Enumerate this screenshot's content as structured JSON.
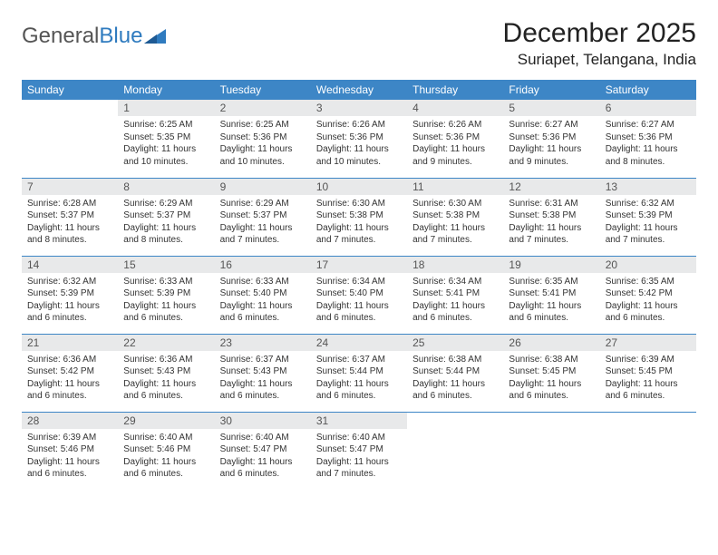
{
  "logo": {
    "word1": "General",
    "word2": "Blue"
  },
  "title": "December 2025",
  "location": "Suriapet, Telangana, India",
  "colors": {
    "header_bg": "#3d86c6",
    "header_fg": "#ffffff",
    "daynum_bg": "#e8e9ea",
    "border": "#3d86c6",
    "text": "#333333"
  },
  "weekdays": [
    "Sunday",
    "Monday",
    "Tuesday",
    "Wednesday",
    "Thursday",
    "Friday",
    "Saturday"
  ],
  "weeks": [
    [
      {
        "n": "",
        "sunrise": "",
        "sunset": "",
        "daylight": ""
      },
      {
        "n": "1",
        "sunrise": "Sunrise: 6:25 AM",
        "sunset": "Sunset: 5:35 PM",
        "daylight": "Daylight: 11 hours and 10 minutes."
      },
      {
        "n": "2",
        "sunrise": "Sunrise: 6:25 AM",
        "sunset": "Sunset: 5:36 PM",
        "daylight": "Daylight: 11 hours and 10 minutes."
      },
      {
        "n": "3",
        "sunrise": "Sunrise: 6:26 AM",
        "sunset": "Sunset: 5:36 PM",
        "daylight": "Daylight: 11 hours and 10 minutes."
      },
      {
        "n": "4",
        "sunrise": "Sunrise: 6:26 AM",
        "sunset": "Sunset: 5:36 PM",
        "daylight": "Daylight: 11 hours and 9 minutes."
      },
      {
        "n": "5",
        "sunrise": "Sunrise: 6:27 AM",
        "sunset": "Sunset: 5:36 PM",
        "daylight": "Daylight: 11 hours and 9 minutes."
      },
      {
        "n": "6",
        "sunrise": "Sunrise: 6:27 AM",
        "sunset": "Sunset: 5:36 PM",
        "daylight": "Daylight: 11 hours and 8 minutes."
      }
    ],
    [
      {
        "n": "7",
        "sunrise": "Sunrise: 6:28 AM",
        "sunset": "Sunset: 5:37 PM",
        "daylight": "Daylight: 11 hours and 8 minutes."
      },
      {
        "n": "8",
        "sunrise": "Sunrise: 6:29 AM",
        "sunset": "Sunset: 5:37 PM",
        "daylight": "Daylight: 11 hours and 8 minutes."
      },
      {
        "n": "9",
        "sunrise": "Sunrise: 6:29 AM",
        "sunset": "Sunset: 5:37 PM",
        "daylight": "Daylight: 11 hours and 7 minutes."
      },
      {
        "n": "10",
        "sunrise": "Sunrise: 6:30 AM",
        "sunset": "Sunset: 5:38 PM",
        "daylight": "Daylight: 11 hours and 7 minutes."
      },
      {
        "n": "11",
        "sunrise": "Sunrise: 6:30 AM",
        "sunset": "Sunset: 5:38 PM",
        "daylight": "Daylight: 11 hours and 7 minutes."
      },
      {
        "n": "12",
        "sunrise": "Sunrise: 6:31 AM",
        "sunset": "Sunset: 5:38 PM",
        "daylight": "Daylight: 11 hours and 7 minutes."
      },
      {
        "n": "13",
        "sunrise": "Sunrise: 6:32 AM",
        "sunset": "Sunset: 5:39 PM",
        "daylight": "Daylight: 11 hours and 7 minutes."
      }
    ],
    [
      {
        "n": "14",
        "sunrise": "Sunrise: 6:32 AM",
        "sunset": "Sunset: 5:39 PM",
        "daylight": "Daylight: 11 hours and 6 minutes."
      },
      {
        "n": "15",
        "sunrise": "Sunrise: 6:33 AM",
        "sunset": "Sunset: 5:39 PM",
        "daylight": "Daylight: 11 hours and 6 minutes."
      },
      {
        "n": "16",
        "sunrise": "Sunrise: 6:33 AM",
        "sunset": "Sunset: 5:40 PM",
        "daylight": "Daylight: 11 hours and 6 minutes."
      },
      {
        "n": "17",
        "sunrise": "Sunrise: 6:34 AM",
        "sunset": "Sunset: 5:40 PM",
        "daylight": "Daylight: 11 hours and 6 minutes."
      },
      {
        "n": "18",
        "sunrise": "Sunrise: 6:34 AM",
        "sunset": "Sunset: 5:41 PM",
        "daylight": "Daylight: 11 hours and 6 minutes."
      },
      {
        "n": "19",
        "sunrise": "Sunrise: 6:35 AM",
        "sunset": "Sunset: 5:41 PM",
        "daylight": "Daylight: 11 hours and 6 minutes."
      },
      {
        "n": "20",
        "sunrise": "Sunrise: 6:35 AM",
        "sunset": "Sunset: 5:42 PM",
        "daylight": "Daylight: 11 hours and 6 minutes."
      }
    ],
    [
      {
        "n": "21",
        "sunrise": "Sunrise: 6:36 AM",
        "sunset": "Sunset: 5:42 PM",
        "daylight": "Daylight: 11 hours and 6 minutes."
      },
      {
        "n": "22",
        "sunrise": "Sunrise: 6:36 AM",
        "sunset": "Sunset: 5:43 PM",
        "daylight": "Daylight: 11 hours and 6 minutes."
      },
      {
        "n": "23",
        "sunrise": "Sunrise: 6:37 AM",
        "sunset": "Sunset: 5:43 PM",
        "daylight": "Daylight: 11 hours and 6 minutes."
      },
      {
        "n": "24",
        "sunrise": "Sunrise: 6:37 AM",
        "sunset": "Sunset: 5:44 PM",
        "daylight": "Daylight: 11 hours and 6 minutes."
      },
      {
        "n": "25",
        "sunrise": "Sunrise: 6:38 AM",
        "sunset": "Sunset: 5:44 PM",
        "daylight": "Daylight: 11 hours and 6 minutes."
      },
      {
        "n": "26",
        "sunrise": "Sunrise: 6:38 AM",
        "sunset": "Sunset: 5:45 PM",
        "daylight": "Daylight: 11 hours and 6 minutes."
      },
      {
        "n": "27",
        "sunrise": "Sunrise: 6:39 AM",
        "sunset": "Sunset: 5:45 PM",
        "daylight": "Daylight: 11 hours and 6 minutes."
      }
    ],
    [
      {
        "n": "28",
        "sunrise": "Sunrise: 6:39 AM",
        "sunset": "Sunset: 5:46 PM",
        "daylight": "Daylight: 11 hours and 6 minutes."
      },
      {
        "n": "29",
        "sunrise": "Sunrise: 6:40 AM",
        "sunset": "Sunset: 5:46 PM",
        "daylight": "Daylight: 11 hours and 6 minutes."
      },
      {
        "n": "30",
        "sunrise": "Sunrise: 6:40 AM",
        "sunset": "Sunset: 5:47 PM",
        "daylight": "Daylight: 11 hours and 6 minutes."
      },
      {
        "n": "31",
        "sunrise": "Sunrise: 6:40 AM",
        "sunset": "Sunset: 5:47 PM",
        "daylight": "Daylight: 11 hours and 7 minutes."
      },
      {
        "n": "",
        "sunrise": "",
        "sunset": "",
        "daylight": ""
      },
      {
        "n": "",
        "sunrise": "",
        "sunset": "",
        "daylight": ""
      },
      {
        "n": "",
        "sunrise": "",
        "sunset": "",
        "daylight": ""
      }
    ]
  ]
}
